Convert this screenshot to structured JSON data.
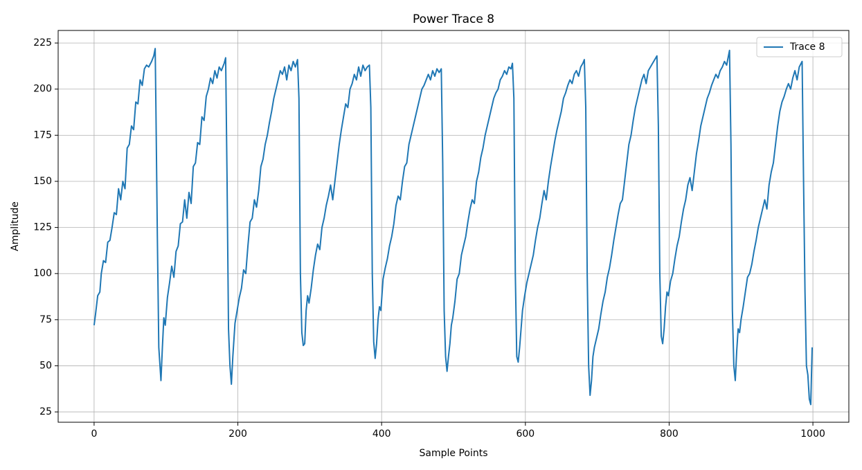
{
  "chart_data": {
    "type": "line",
    "title": "Power Trace 8",
    "x_label": "Sample Points",
    "y_label": "Amplitude",
    "xlim": [
      -50,
      1050
    ],
    "ylim": [
      19.4,
      231.8
    ],
    "xticks": [
      0,
      200,
      400,
      600,
      800,
      1000
    ],
    "yticks": [
      25,
      50,
      75,
      100,
      125,
      150,
      175,
      200,
      225
    ],
    "grid": true,
    "legend": "upper right",
    "series": [
      {
        "name": "Trace 8",
        "color": "#1f77b4",
        "x": [
          0,
          2,
          5,
          8,
          10,
          13,
          16,
          19,
          22,
          25,
          28,
          31,
          34,
          37,
          40,
          43,
          46,
          49,
          52,
          55,
          58,
          61,
          64,
          67,
          70,
          73,
          76,
          80,
          83,
          85,
          86,
          88,
          90,
          92,
          93,
          95,
          97,
          99,
          102,
          105,
          108,
          111,
          114,
          117,
          120,
          123,
          126,
          129,
          132,
          135,
          138,
          141,
          144,
          147,
          150,
          153,
          156,
          159,
          162,
          165,
          168,
          171,
          174,
          177,
          181,
          183,
          185,
          187,
          189,
          191,
          193,
          196,
          199,
          202,
          205,
          208,
          211,
          214,
          217,
          220,
          223,
          226,
          229,
          232,
          235,
          238,
          241,
          244,
          247,
          250,
          253,
          256,
          259,
          262,
          265,
          268,
          271,
          274,
          277,
          280,
          283,
          285,
          287,
          289,
          291,
          293,
          295,
          297,
          299,
          302,
          305,
          308,
          311,
          314,
          317,
          320,
          323,
          326,
          329,
          332,
          335,
          338,
          341,
          344,
          347,
          350,
          353,
          356,
          359,
          362,
          365,
          368,
          371,
          374,
          377,
          380,
          383,
          385,
          387,
          389,
          391,
          393,
          395,
          397,
          399,
          402,
          405,
          408,
          411,
          414,
          417,
          420,
          423,
          426,
          429,
          432,
          435,
          438,
          441,
          444,
          447,
          450,
          453,
          456,
          459,
          462,
          465,
          468,
          471,
          474,
          477,
          480,
          483,
          485,
          487,
          489,
          491,
          493,
          495,
          497,
          499,
          502,
          505,
          508,
          511,
          514,
          517,
          520,
          523,
          526,
          529,
          532,
          535,
          538,
          541,
          544,
          547,
          550,
          553,
          556,
          559,
          562,
          565,
          568,
          571,
          574,
          577,
          580,
          582,
          584,
          586,
          588,
          590,
          592,
          594,
          596,
          599,
          602,
          605,
          608,
          611,
          614,
          617,
          620,
          623,
          626,
          629,
          632,
          635,
          638,
          641,
          644,
          647,
          650,
          653,
          656,
          659,
          662,
          665,
          668,
          671,
          674,
          677,
          680,
          682,
          684,
          686,
          688,
          690,
          692,
          694,
          696,
          699,
          702,
          705,
          708,
          711,
          714,
          717,
          720,
          723,
          726,
          729,
          732,
          735,
          738,
          741,
          744,
          747,
          750,
          753,
          756,
          759,
          762,
          765,
          768,
          771,
          774,
          777,
          780,
          783,
          785,
          787,
          789,
          791,
          793,
          795,
          797,
          799,
          802,
          805,
          808,
          811,
          814,
          817,
          820,
          823,
          826,
          829,
          832,
          835,
          838,
          841,
          844,
          847,
          850,
          853,
          856,
          859,
          862,
          865,
          868,
          871,
          874,
          877,
          880,
          884,
          886,
          888,
          890,
          892,
          894,
          896,
          898,
          900,
          903,
          906,
          909,
          912,
          915,
          918,
          921,
          924,
          927,
          930,
          933,
          936,
          939,
          942,
          945,
          948,
          951,
          954,
          957,
          960,
          963,
          966,
          969,
          972,
          975,
          978,
          981,
          985,
          987,
          989,
          991,
          993,
          995,
          997,
          998,
          999
        ],
        "values": [
          72,
          78,
          88,
          90,
          100,
          107,
          106,
          117,
          118,
          125,
          133,
          132,
          146,
          140,
          150,
          146,
          168,
          170,
          180,
          178,
          193,
          192,
          205,
          202,
          211,
          213,
          212,
          215,
          218,
          222,
          190,
          120,
          60,
          48,
          42,
          60,
          76,
          72,
          87,
          95,
          104,
          98,
          112,
          115,
          127,
          128,
          140,
          130,
          144,
          138,
          158,
          160,
          171,
          170,
          185,
          183,
          196,
          200,
          206,
          203,
          210,
          206,
          212,
          210,
          214,
          217,
          150,
          70,
          50,
          40,
          55,
          73,
          80,
          87,
          92,
          102,
          100,
          115,
          128,
          130,
          140,
          136,
          145,
          158,
          162,
          170,
          175,
          182,
          188,
          195,
          200,
          205,
          210,
          208,
          212,
          205,
          213,
          210,
          215,
          212,
          216,
          195,
          100,
          68,
          61,
          62,
          80,
          88,
          84,
          92,
          102,
          110,
          116,
          113,
          125,
          130,
          137,
          142,
          148,
          140,
          150,
          160,
          170,
          178,
          185,
          192,
          190,
          200,
          203,
          208,
          205,
          212,
          207,
          213,
          210,
          212,
          213,
          190,
          100,
          63,
          54,
          62,
          75,
          82,
          80,
          97,
          103,
          108,
          115,
          120,
          127,
          137,
          142,
          140,
          150,
          158,
          160,
          170,
          175,
          180,
          185,
          190,
          195,
          200,
          202,
          205,
          208,
          205,
          210,
          207,
          211,
          209,
          211,
          160,
          80,
          55,
          47,
          55,
          62,
          72,
          76,
          85,
          97,
          100,
          110,
          115,
          120,
          128,
          135,
          140,
          138,
          150,
          155,
          163,
          168,
          175,
          180,
          185,
          190,
          195,
          198,
          200,
          205,
          207,
          210,
          208,
          212,
          211,
          214,
          195,
          100,
          55,
          52,
          60,
          70,
          80,
          88,
          95,
          100,
          105,
          110,
          118,
          125,
          130,
          138,
          145,
          140,
          150,
          158,
          165,
          172,
          178,
          183,
          188,
          195,
          198,
          202,
          205,
          203,
          208,
          210,
          207,
          212,
          214,
          216,
          190,
          100,
          50,
          34,
          42,
          55,
          60,
          65,
          70,
          78,
          85,
          90,
          98,
          103,
          110,
          118,
          125,
          132,
          138,
          140,
          150,
          160,
          170,
          175,
          183,
          190,
          195,
          200,
          205,
          208,
          203,
          210,
          212,
          214,
          216,
          218,
          180,
          100,
          66,
          62,
          70,
          82,
          90,
          88,
          96,
          100,
          108,
          115,
          120,
          128,
          135,
          140,
          148,
          152,
          145,
          155,
          165,
          172,
          180,
          185,
          190,
          195,
          198,
          202,
          205,
          208,
          206,
          210,
          212,
          215,
          213,
          221,
          170,
          80,
          50,
          42,
          58,
          70,
          68,
          75,
          82,
          90,
          98,
          100,
          105,
          112,
          118,
          125,
          130,
          135,
          140,
          135,
          148,
          155,
          160,
          170,
          180,
          188,
          193,
          196,
          200,
          203,
          200,
          206,
          210,
          205,
          212,
          215,
          150,
          90,
          50,
          45,
          32,
          29,
          45,
          60
        ]
      }
    ]
  }
}
